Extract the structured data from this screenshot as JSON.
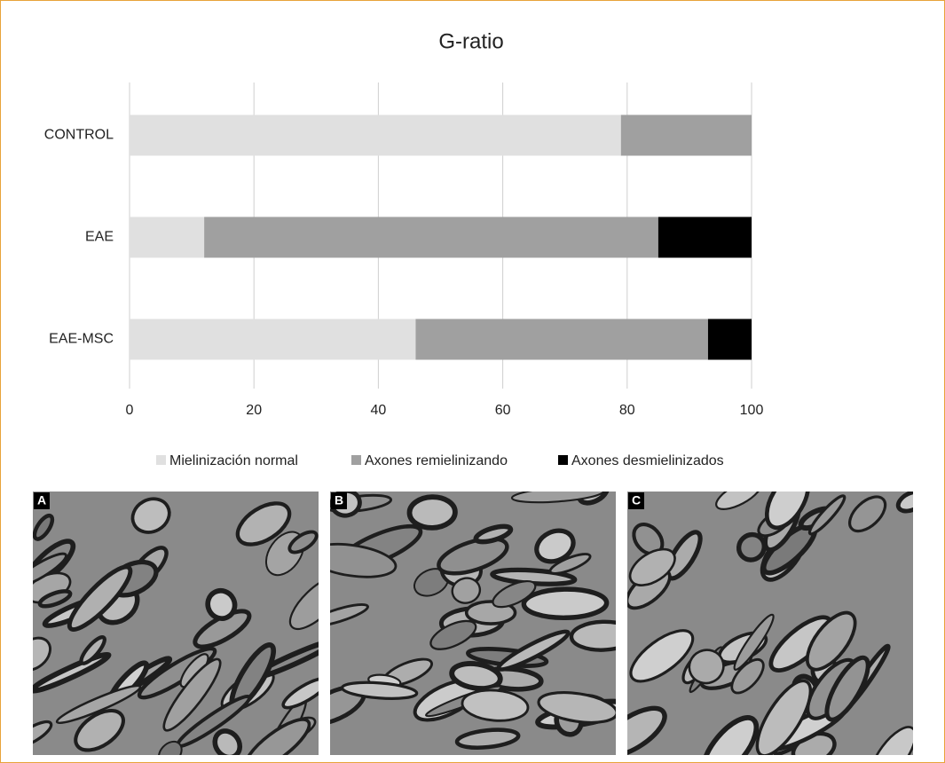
{
  "chart_data": {
    "type": "stacked-bar-horizontal",
    "title": "G-ratio",
    "categories": [
      "CONTROL",
      "EAE",
      "EAE-MSC"
    ],
    "series": [
      {
        "name": "Mielinización normal",
        "color": "#e0e0e0",
        "values": [
          79,
          12,
          46
        ]
      },
      {
        "name": "Axones remielinizando",
        "color": "#a0a0a0",
        "values": [
          21,
          73,
          47
        ]
      },
      {
        "name": "Axones desmielinizados",
        "color": "#000000",
        "values": [
          0,
          15,
          7
        ]
      }
    ],
    "xlim": [
      0,
      100
    ],
    "xticks": [
      0,
      20,
      40,
      60,
      80,
      100
    ],
    "grid": true,
    "legend": "bottom"
  },
  "panels": [
    "A",
    "B",
    "C"
  ]
}
